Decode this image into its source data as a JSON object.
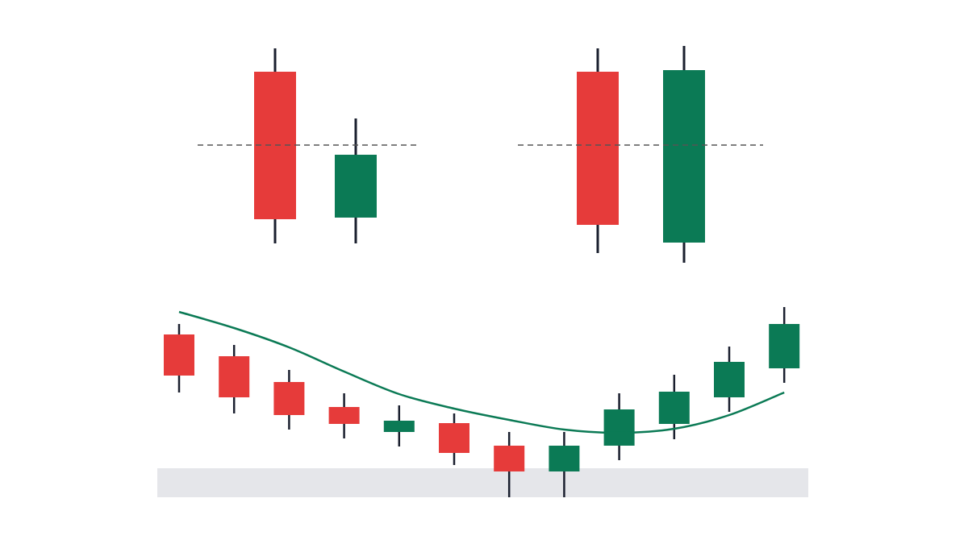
{
  "chart_data": [
    {
      "type": "candlestick",
      "open": [
        586,
        405
      ],
      "high": [
        615,
        528
      ],
      "low": [
        373,
        373
      ],
      "close": [
        403,
        483
      ],
      "up_color": "#0b7a55",
      "down_color": "#e63b3a",
      "wick_color": "#1a1f2e",
      "ylim": [
        0,
        675
      ],
      "reference_line": 495
    },
    {
      "type": "candlestick",
      "open": [
        586,
        374
      ],
      "high": [
        615,
        618
      ],
      "low": [
        361,
        349
      ],
      "close": [
        396,
        588
      ],
      "up_color": "#0b7a55",
      "down_color": "#e63b3a",
      "wick_color": "#1a1f2e",
      "ylim": [
        0,
        675
      ],
      "reference_line": 495
    },
    {
      "type": "candlestick",
      "open": [
        260,
        233,
        201,
        170,
        139,
        150,
        122,
        90,
        122,
        149,
        182,
        218
      ],
      "high": [
        273,
        247,
        216,
        187,
        172,
        162,
        139,
        139,
        187,
        210,
        245,
        294
      ],
      "low": [
        188,
        162,
        142,
        131,
        121,
        98,
        58,
        58,
        104,
        130,
        164,
        200
      ],
      "close": [
        209,
        182,
        160,
        149,
        153,
        113,
        90,
        122,
        167,
        189,
        226,
        273
      ],
      "up_color": "#0b7a55",
      "down_color": "#e63b3a",
      "wick_color": "#1a1f2e",
      "ylim": [
        0,
        675
      ],
      "moving_average": {
        "color": "#0b7a55",
        "values": [
          288,
          268,
          244,
          214,
          186,
          168,
          154,
          142,
          138,
          143,
          160,
          188
        ]
      },
      "support_band": [
        58,
        94
      ],
      "band_color": "#e5e6ea"
    }
  ]
}
